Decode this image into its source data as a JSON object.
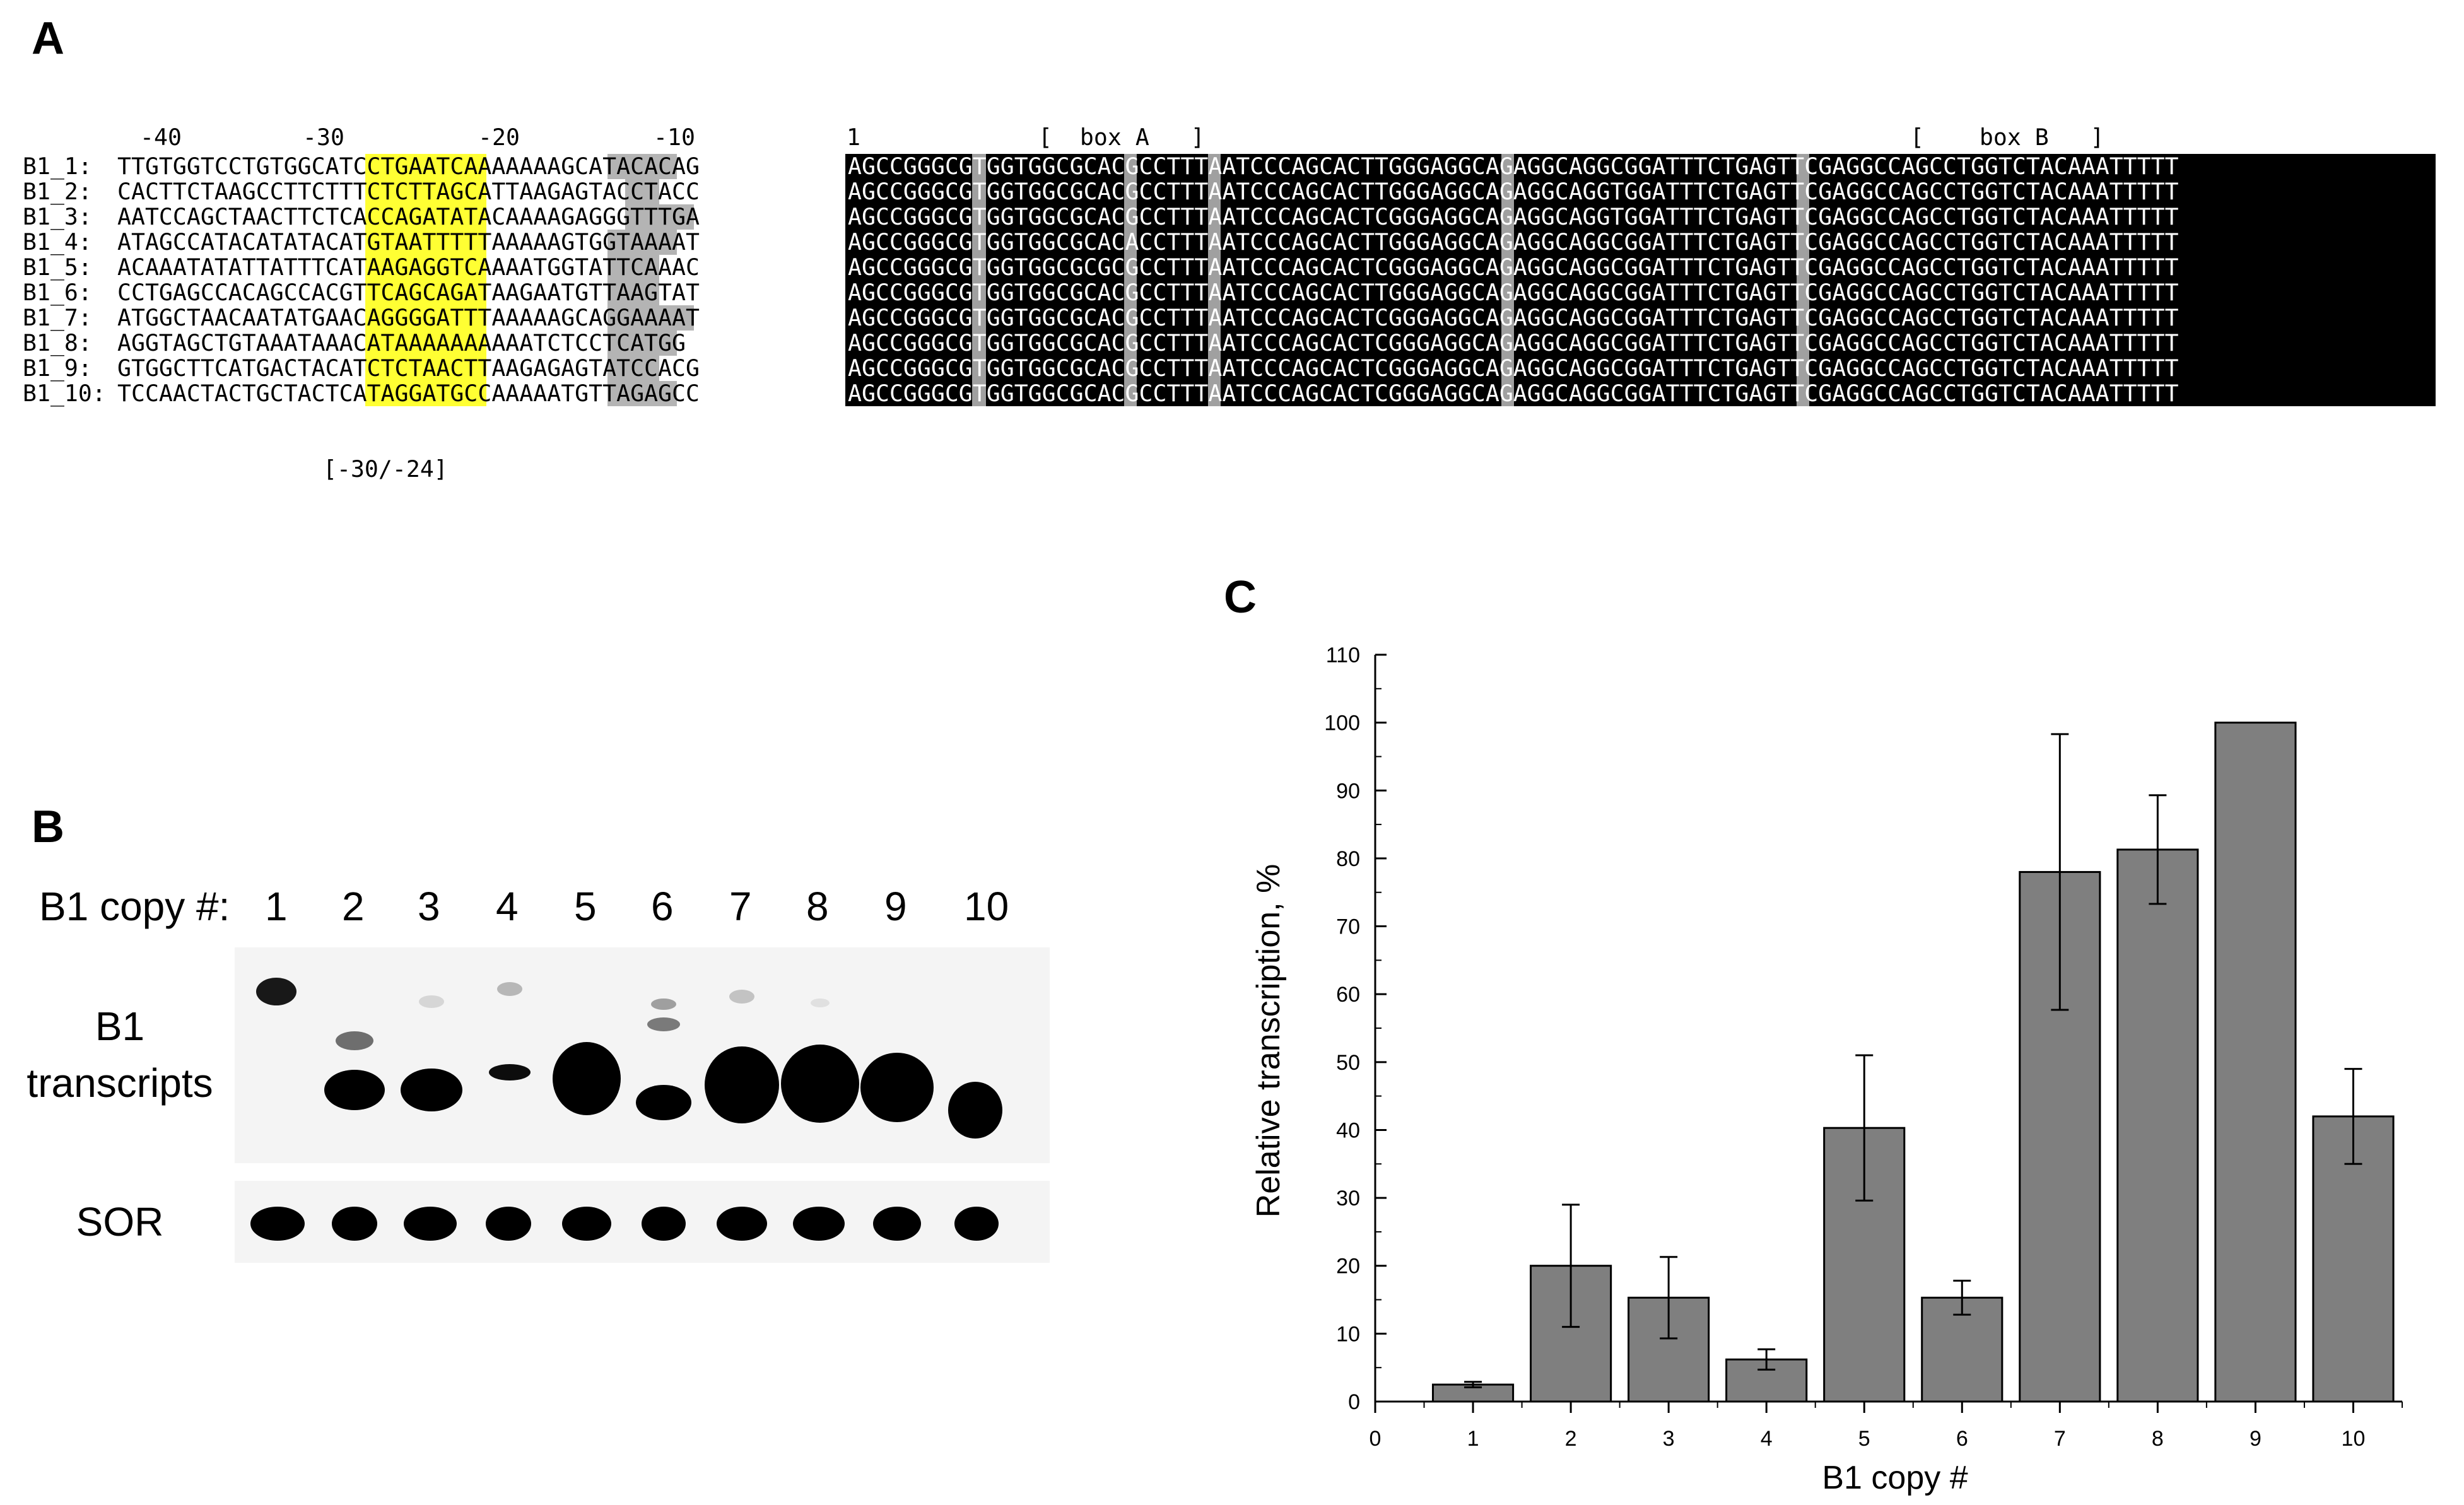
{
  "panel_a": {
    "label": "A",
    "position_labels": [
      "-40",
      "-30",
      "-20",
      "-10",
      "1"
    ],
    "box_a_label": "[  box A   ]",
    "box_b_label": "[    box B   ]",
    "bracket_label": "[-30/-24]",
    "colors": {
      "tata_highlight": "#ffff33",
      "a_rich_highlight": "#b4b4b4",
      "conserved_block": "#000000"
    },
    "sequences": [
      {
        "name": "B1_1:",
        "upstream": "TTGTGGTCCTGTGGCATCCTGAATCAAAAAAAGCATACACAG",
        "body": "AGCCGGGCGTGGTGGCGCACGCCTTTAATCCCAGCACTTGGGAGGCAGAGGCAGGCGGATTTCTGAGTTCGAGGCCAGCCTGGTCTACAAATTTTT"
      },
      {
        "name": "B1_2:",
        "upstream": "CACTTCTAAGCCTTCTTTCTCTTAGCATTAAGAGTACCTACC",
        "body": "AGCCGGGCGTGGTGGCGCACGCCTTTAATCCCAGCACTTGGGAGGCAGAGGCAGGTGGATTTCTGAGTTCGAGGCCAGCCTGGTCTACAAATTTTT"
      },
      {
        "name": "B1_3:",
        "upstream": "AATCCAGCTAACTTCTCACCAGATATACAAAAGAGGGTTTGA",
        "body": "AGCCGGGCGTGGTGGCGCACGCCTTTAATCCCAGCACTCGGGAGGCAGAGGCAGGTGGATTTCTGAGTTCGAGGCCAGCCTGGTCTACAAATTTTT"
      },
      {
        "name": "B1_4:",
        "upstream": "ATAGCCATACATATACATGTAATTTTTAAAAAGTGGTAAAAT",
        "body": "AGCCGGGCGTGGTGGCGCACACCTTTAATCCCAGCACTTGGGAGGCAGAGGCAGGCGGATTTCTGAGTTCGAGGCCAGCCTGGTCTACAAATTTTT"
      },
      {
        "name": "B1_5:",
        "upstream": "ACAAATATATTATTTCATAAGAGGTCAAAATGGTATTCAAAC",
        "body": "AGCCGGGCGTGGTGGCGCGCGCCTTTAATCCCAGCACTCGGGAGGCAGAGGCAGGCGGATTTCTGAGTTCGAGGCCAGCCTGGTCTACAAATTTTT"
      },
      {
        "name": "B1_6:",
        "upstream": "CCTGAGCCACAGCCACGTTCAGCAGATAAGAATGTTAAGTAT",
        "body": "AGCCGGGCGTGGTGGCGCACGCCTTTAATCCCAGCACTTGGGAGGCAGAGGCAGGCGGATTTCTGAGTTCGAGGCCAGCCTGGTCTACAAATTTTT"
      },
      {
        "name": "B1_7:",
        "upstream": "ATGGCTAACAATATGAACAGGGGATTTAAAAAGCAGGAAAAT",
        "body": "AGCCGGGCGTGGTGGCGCACGCCTTTAATCCCAGCACTCGGGAGGCAGAGGCAGGCGGATTTCTGAGTTCGAGGCCAGCCTGGTCTACAAATTTTT"
      },
      {
        "name": "B1_8:",
        "upstream": "AGGTAGCTGTAAATAAACATAAAAAAAAAATCTCCTCATGG",
        "body": "AGCCGGGCGTGGTGGCGCACGCCTTTAATCCCAGCACTCGGGAGGCAGAGGCAGGCGGATTTCTGAGTTCGAGGCCAGCCTGGTCTACAAATTTTT"
      },
      {
        "name": "B1_9:",
        "upstream": "GTGGCTTCATGACTACATCTCTAACTTAAGAGAGTATCCACG",
        "body": "AGCCGGGCGTGGTGGCGCACGCCTTTAATCCCAGCACTCGGGAGGCAGAGGCAGGCGGATTTCTGAGTTCGAGGCCAGCCTGGTCTACAAATTTTT"
      },
      {
        "name": "B1_10:",
        "upstream": "TCCAACTACTGCTACTCATAGGATGCCAAAAATGTTAGAGCC",
        "body": "AGCCGGGCGTGGTGGCGCACGCCTTTAATCCCAGCACTCGGGAGGCAGAGGCAGGCGGATTTCTGAGTTCGAGGCCAGCCTGGTCTACAAATTTTT"
      }
    ]
  },
  "panel_b": {
    "label": "B",
    "copy_label": "B1 copy #:",
    "lanes": [
      "1",
      "2",
      "3",
      "4",
      "5",
      "6",
      "7",
      "8",
      "9",
      "10"
    ],
    "row_label_transcripts_1": "B1",
    "row_label_transcripts_2": "transcripts",
    "row_label_sor": "SOR"
  },
  "panel_c": {
    "label": "C",
    "chart_data": {
      "type": "bar",
      "categories": [
        "1",
        "2",
        "3",
        "4",
        "5",
        "6",
        "7",
        "8",
        "9",
        "10"
      ],
      "values": [
        2.5,
        20,
        15.3,
        6.2,
        40.3,
        15.3,
        78,
        81.3,
        100,
        42
      ],
      "errors": [
        0.4,
        9,
        6,
        1.5,
        10.7,
        2.5,
        20.3,
        8,
        0,
        7
      ],
      "xlabel": "B1 copy #",
      "ylabel": "Relative  transcription, %",
      "ylim": [
        0,
        110
      ],
      "yticks": [
        "0",
        "10",
        "20",
        "30",
        "40",
        "50",
        "60",
        "70",
        "80",
        "90",
        "100",
        "110"
      ],
      "xtick_zero": "0",
      "bar_color": "#7f7f7f"
    }
  }
}
